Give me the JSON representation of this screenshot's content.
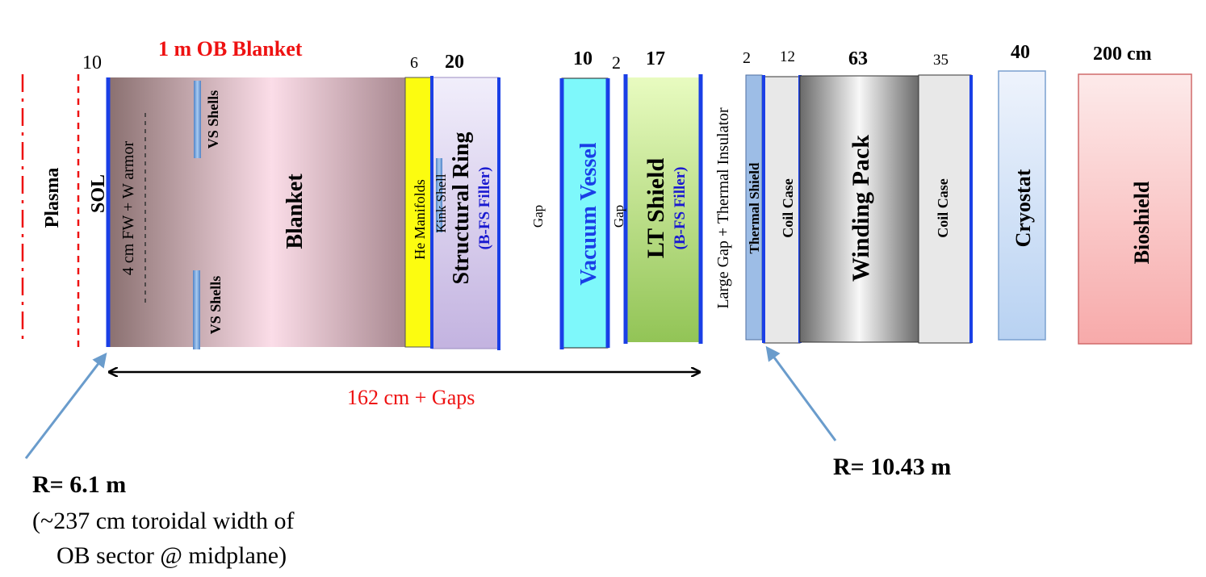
{
  "colors": {
    "accent_blue": "#1a3fe6",
    "red": "#ee1111",
    "arrow_blue": "#6a9ccc",
    "filler_blue": "#1a1ad0",
    "vv_fill": "#7ef8fb",
    "he_fill": "#fcfc10",
    "thermal_fill": "#9dbde6",
    "coil_fill": "#e8e8e8",
    "cryo_fill": "#dbe8fb",
    "bio_fill": "#fbd0d0"
  },
  "thicknesses": {
    "sol": "10",
    "he_manifolds": "6",
    "structural_ring": "20",
    "vacuum_vessel": "10",
    "gap1": "2",
    "lt_shield": "17",
    "thermal_shield": "2",
    "coil_case_1": "12",
    "winding_pack": "63",
    "coil_case_2": "35",
    "cryostat": "40",
    "bioshield": "200 cm"
  },
  "title": "1 m OB Blanket",
  "labels": {
    "plasma": "Plasma",
    "sol": "SOL",
    "fw_armor": "4 cm FW + W armor",
    "vs_shells": "VS  Shells",
    "blanket": "Blanket",
    "he_manifolds": "He Manifolds",
    "kink_shell": "Kink Shell",
    "structural_ring": "Structural  Ring",
    "filler": "(B-FS Filler)",
    "gap": "Gap",
    "vacuum_vessel": "Vacuum  Vessel",
    "lt_shield": "LT  Shield",
    "large_gap": "Large  Gap + Thermal Insulator",
    "thermal_shield": "Thermal Shield",
    "coil_case": "Coil Case",
    "winding_pack": "Winding  Pack",
    "cryostat": "Cryostat",
    "bioshield": "Bioshield"
  },
  "span_label": "162 cm + Gaps",
  "radius_inner": "R= 6.1 m",
  "radius_outer": "R= 10.43 m",
  "note_line1": "(~237 cm toroidal width of",
  "note_line2": "OB sector @ midplane)"
}
